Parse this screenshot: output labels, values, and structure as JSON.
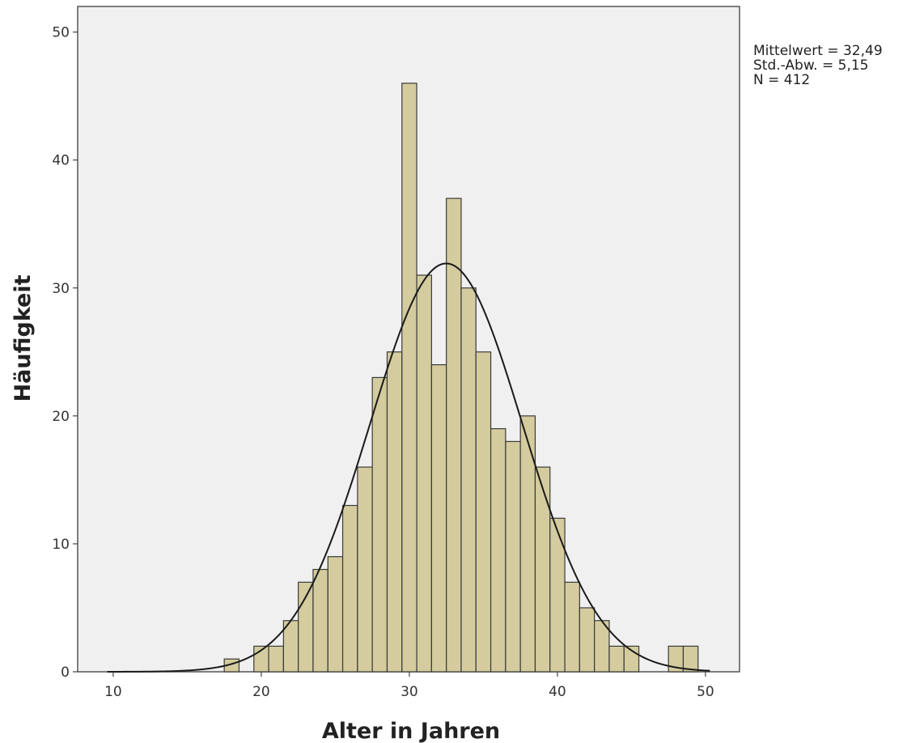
{
  "chart_data": {
    "type": "bar",
    "title": "",
    "xlabel": "Alter in Jahren",
    "ylabel": "Häufigkeit",
    "xlim": [
      7.6,
      52.3
    ],
    "ylim": [
      0,
      52
    ],
    "x_ticks": [
      10,
      20,
      30,
      40,
      50
    ],
    "y_ticks": [
      0,
      10,
      20,
      30,
      40,
      50
    ],
    "bin_width": 1,
    "bins": [
      {
        "x": 18,
        "count": 1
      },
      {
        "x": 20,
        "count": 2
      },
      {
        "x": 21,
        "count": 2
      },
      {
        "x": 22,
        "count": 4
      },
      {
        "x": 23,
        "count": 7
      },
      {
        "x": 24,
        "count": 8
      },
      {
        "x": 25,
        "count": 9
      },
      {
        "x": 26,
        "count": 13
      },
      {
        "x": 27,
        "count": 16
      },
      {
        "x": 28,
        "count": 23
      },
      {
        "x": 29,
        "count": 25
      },
      {
        "x": 30,
        "count": 46
      },
      {
        "x": 31,
        "count": 31
      },
      {
        "x": 32,
        "count": 24
      },
      {
        "x": 33,
        "count": 37
      },
      {
        "x": 34,
        "count": 30
      },
      {
        "x": 35,
        "count": 25
      },
      {
        "x": 36,
        "count": 19
      },
      {
        "x": 37,
        "count": 18
      },
      {
        "x": 38,
        "count": 20
      },
      {
        "x": 39,
        "count": 16
      },
      {
        "x": 40,
        "count": 12
      },
      {
        "x": 41,
        "count": 7
      },
      {
        "x": 42,
        "count": 5
      },
      {
        "x": 43,
        "count": 4
      },
      {
        "x": 44,
        "count": 2
      },
      {
        "x": 45,
        "count": 2
      },
      {
        "x": 48,
        "count": 2
      },
      {
        "x": 49,
        "count": 2
      }
    ],
    "normal_curve": {
      "mean": 32.49,
      "sd": 5.15,
      "n": 412
    },
    "grid": false,
    "colors": {
      "bar_fill": "#d4cc9e",
      "bar_stroke": "#3a3a3a",
      "plot_bg": "#f0f0f0",
      "curve": "#1a1a1a"
    }
  },
  "stats_box": {
    "mean_line": "Mittelwert = 32,49",
    "sd_line": "Std.-Abw. = 5,15",
    "n_line": "N = 412"
  }
}
